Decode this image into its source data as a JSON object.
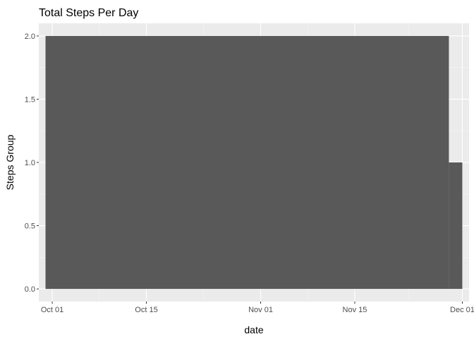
{
  "chart_data": {
    "type": "bar",
    "title": "Total Steps Per Day",
    "xlabel": "date",
    "ylabel": "Steps Group",
    "xlim": [
      "2012-09-29",
      "2012-12-02"
    ],
    "ylim": [
      -0.1,
      2.1
    ],
    "x_ticks": [
      {
        "date": "2012-10-01",
        "label": "Oct 01"
      },
      {
        "date": "2012-10-15",
        "label": "Oct 15"
      },
      {
        "date": "2012-11-01",
        "label": "Nov 01"
      },
      {
        "date": "2012-11-15",
        "label": "Nov 15"
      },
      {
        "date": "2012-12-01",
        "label": "Dec 01"
      }
    ],
    "y_ticks": [
      {
        "value": 0,
        "label": "0.0"
      },
      {
        "value": 0.5,
        "label": "0.5"
      },
      {
        "value": 1,
        "label": "1.0"
      },
      {
        "value": 1.5,
        "label": "1.5"
      },
      {
        "value": 2,
        "label": "2.0"
      }
    ],
    "bars": [
      {
        "start": "2012-09-30",
        "end": "2012-11-29",
        "value": 2
      },
      {
        "start": "2012-11-29",
        "end": "2012-12-01",
        "value": 1
      }
    ],
    "grid": true,
    "legend": "none",
    "colors": {
      "panel_background": "#ebebeb",
      "grid_major": "#ffffff",
      "grid_minor": "#f5f5f5",
      "bar_fill": "#595959",
      "tick_text": "#4d4d4d",
      "tick_mark": "#333333"
    }
  }
}
